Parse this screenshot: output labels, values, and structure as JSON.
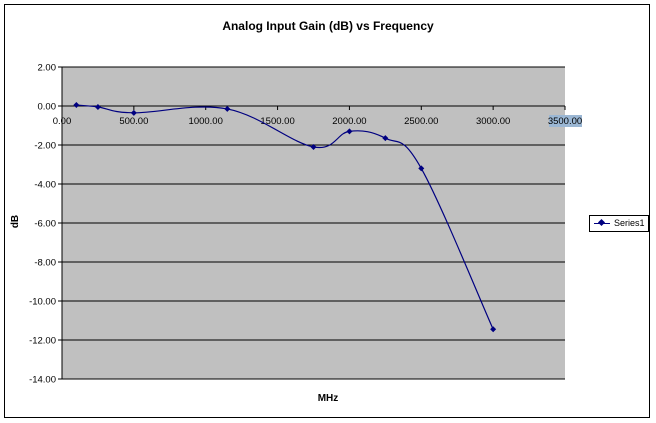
{
  "chart_data": {
    "type": "line",
    "title": "Analog Input Gain (dB) vs Frequency",
    "xlabel": "MHz",
    "ylabel": "dB",
    "xlim": [
      0,
      3500
    ],
    "ylim": [
      -14,
      2
    ],
    "x_ticks": [
      "0.00",
      "500.00",
      "1000.00",
      "1500.00",
      "2000.00",
      "2500.00",
      "3000.00",
      "3500.00"
    ],
    "y_ticks": [
      "2.00",
      "0.00",
      "-2.00",
      "-4.00",
      "-6.00",
      "-8.00",
      "-10.00",
      "-12.00",
      "-14.00"
    ],
    "grid": "horizontal",
    "legend_position": "right",
    "series": [
      {
        "name": "Series1",
        "x": [
          100,
          250,
          500,
          1150,
          1750,
          2000,
          2250,
          2500,
          3000
        ],
        "y": [
          0.05,
          -0.05,
          -0.35,
          -0.15,
          -2.1,
          -1.3,
          -1.65,
          -3.2,
          -11.45
        ]
      }
    ],
    "colors": {
      "plot_area": "#c0c0c0",
      "series": "#000080",
      "grid": "#000000"
    }
  }
}
